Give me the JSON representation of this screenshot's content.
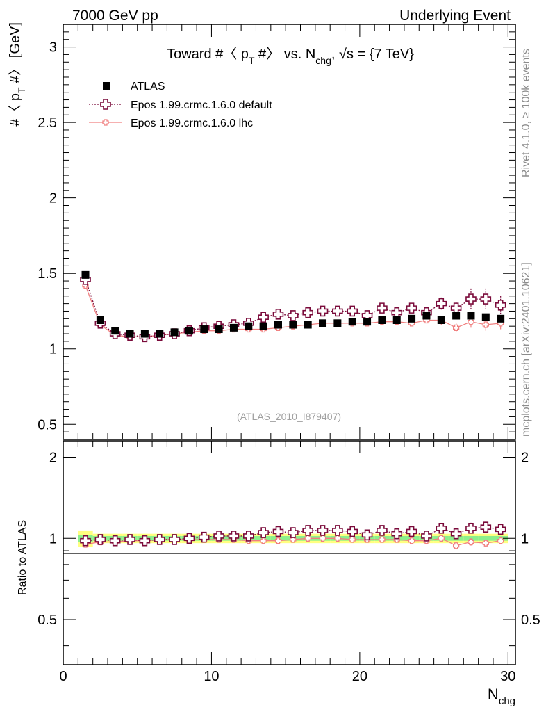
{
  "header": {
    "left": "7000 GeV pp",
    "right": "Underlying Event"
  },
  "side_labels": {
    "rivet": "Rivet 4.1.0, ≥ 100k events",
    "mcplots": "mcplots.cern.ch [arXiv:2401.10621]"
  },
  "colors": {
    "atlas": "#000000",
    "default": "#7a0a3a",
    "lhc": "#f08080",
    "band_inner": "#8cf08c",
    "band_outer": "#ffff80"
  },
  "chart_data": [
    {
      "type": "scatter",
      "title": {
        "pre": "Toward #〈 p",
        "sub": "T",
        "mid": " #〉 vs. N",
        "sub2": "chg",
        "post": ", √s = {7 TeV}"
      },
      "ylabel": {
        "pre": "#〈 p",
        "sub": "T",
        "post": " #〉 [GeV]"
      },
      "xlabel": {
        "main": "N",
        "sub": "chg"
      },
      "xlim": [
        0,
        30.5
      ],
      "ylim": [
        0.4,
        3.15
      ],
      "yticks": [
        "0.5",
        "1",
        "1.5",
        "2",
        "2.5",
        "3"
      ],
      "yticks_values": [
        0.5,
        1,
        1.5,
        2,
        2.5,
        3
      ],
      "watermark": "(ATLAS_2010_I879407)",
      "x": [
        1.5,
        2.5,
        3.5,
        4.5,
        5.5,
        6.5,
        7.5,
        8.5,
        9.5,
        10.5,
        11.5,
        12.5,
        13.5,
        14.5,
        15.5,
        16.5,
        17.5,
        18.5,
        19.5,
        20.5,
        21.5,
        22.5,
        23.5,
        24.5,
        25.5,
        26.5,
        27.5,
        28.5,
        29.5
      ],
      "series": [
        {
          "name": "ATLAS",
          "values": [
            1.49,
            1.19,
            1.12,
            1.1,
            1.1,
            1.1,
            1.11,
            1.12,
            1.13,
            1.13,
            1.14,
            1.15,
            1.15,
            1.16,
            1.16,
            1.16,
            1.17,
            1.17,
            1.18,
            1.18,
            1.19,
            1.19,
            1.2,
            1.22,
            1.19,
            1.22,
            1.22,
            1.21,
            1.2
          ]
        },
        {
          "name": "Epos 1.99.crmc.1.6.0 default",
          "values": [
            1.46,
            1.17,
            1.1,
            1.09,
            1.08,
            1.09,
            1.1,
            1.12,
            1.14,
            1.15,
            1.16,
            1.17,
            1.21,
            1.23,
            1.22,
            1.24,
            1.25,
            1.25,
            1.25,
            1.22,
            1.27,
            1.24,
            1.27,
            1.24,
            1.3,
            1.27,
            1.33,
            1.33,
            1.29
          ],
          "errors": [
            0.01,
            0.01,
            0.01,
            0.01,
            0.01,
            0.01,
            0.01,
            0.01,
            0.01,
            0.01,
            0.01,
            0.01,
            0.01,
            0.01,
            0.01,
            0.01,
            0.01,
            0.01,
            0.02,
            0.02,
            0.02,
            0.02,
            0.02,
            0.03,
            0.04,
            0.04,
            0.07,
            0.07,
            0.06
          ]
        },
        {
          "name": "Epos 1.99.crmc.1.6.0 lhc",
          "values": [
            1.42,
            1.16,
            1.09,
            1.08,
            1.08,
            1.09,
            1.1,
            1.11,
            1.12,
            1.12,
            1.13,
            1.13,
            1.13,
            1.14,
            1.15,
            1.16,
            1.17,
            1.17,
            1.17,
            1.17,
            1.18,
            1.18,
            1.17,
            1.19,
            1.19,
            1.14,
            1.18,
            1.16,
            1.17
          ],
          "errors": [
            0.01,
            0.01,
            0.01,
            0.01,
            0.01,
            0.01,
            0.01,
            0.01,
            0.01,
            0.01,
            0.01,
            0.01,
            0.01,
            0.01,
            0.01,
            0.01,
            0.01,
            0.01,
            0.01,
            0.01,
            0.02,
            0.02,
            0.02,
            0.02,
            0.03,
            0.03,
            0.04,
            0.04,
            0.04
          ]
        }
      ]
    },
    {
      "type": "scatter",
      "ylabel": "Ratio to ATLAS",
      "xlim": [
        0,
        30.5
      ],
      "ylim": [
        0.34,
        2.3
      ],
      "yticks": [
        "0.5",
        "1",
        "2"
      ],
      "yticks_values": [
        0.5,
        1,
        2
      ],
      "xticks": [
        "0",
        "10",
        "20",
        "30"
      ],
      "xticks_values": [
        0,
        10,
        20,
        30
      ],
      "x": [
        1.5,
        2.5,
        3.5,
        4.5,
        5.5,
        6.5,
        7.5,
        8.5,
        9.5,
        10.5,
        11.5,
        12.5,
        13.5,
        14.5,
        15.5,
        16.5,
        17.5,
        18.5,
        19.5,
        20.5,
        21.5,
        22.5,
        23.5,
        24.5,
        25.5,
        26.5,
        27.5,
        28.5,
        29.5
      ],
      "band_inner": [
        0.03,
        0.02,
        0.02,
        0.02,
        0.02,
        0.02,
        0.02,
        0.02,
        0.02,
        0.02,
        0.02,
        0.02,
        0.02,
        0.02,
        0.02,
        0.02,
        0.02,
        0.02,
        0.02,
        0.02,
        0.02,
        0.02,
        0.02,
        0.02,
        0.02,
        0.02,
        0.02,
        0.02,
        0.02
      ],
      "band_outer": [
        0.07,
        0.04,
        0.04,
        0.04,
        0.04,
        0.04,
        0.04,
        0.04,
        0.04,
        0.04,
        0.04,
        0.04,
        0.04,
        0.04,
        0.04,
        0.04,
        0.04,
        0.04,
        0.04,
        0.04,
        0.04,
        0.04,
        0.04,
        0.04,
        0.04,
        0.04,
        0.04,
        0.04,
        0.04
      ],
      "series": [
        {
          "name": "Epos 1.99.crmc.1.6.0 default",
          "values": [
            0.98,
            0.99,
            0.98,
            0.99,
            0.98,
            0.99,
            0.99,
            1.0,
            1.01,
            1.02,
            1.02,
            1.02,
            1.05,
            1.06,
            1.05,
            1.07,
            1.07,
            1.07,
            1.06,
            1.03,
            1.07,
            1.04,
            1.06,
            1.02,
            1.09,
            1.04,
            1.09,
            1.1,
            1.08
          ],
          "errors": [
            0.01,
            0.01,
            0.01,
            0.01,
            0.01,
            0.01,
            0.01,
            0.01,
            0.01,
            0.01,
            0.01,
            0.01,
            0.01,
            0.01,
            0.01,
            0.01,
            0.01,
            0.01,
            0.02,
            0.02,
            0.02,
            0.02,
            0.02,
            0.03,
            0.03,
            0.03,
            0.05,
            0.05,
            0.05
          ]
        },
        {
          "name": "Epos 1.99.crmc.1.6.0 lhc",
          "values": [
            0.95,
            0.97,
            0.97,
            0.98,
            0.98,
            0.99,
            0.99,
            0.99,
            0.99,
            0.99,
            0.99,
            0.98,
            0.98,
            0.98,
            0.99,
            1.0,
            1.0,
            1.0,
            0.99,
            0.99,
            0.99,
            0.99,
            0.98,
            0.98,
            1.0,
            0.94,
            0.97,
            0.96,
            0.98
          ],
          "errors": [
            0.01,
            0.01,
            0.01,
            0.01,
            0.01,
            0.01,
            0.01,
            0.01,
            0.01,
            0.01,
            0.01,
            0.01,
            0.01,
            0.01,
            0.01,
            0.01,
            0.01,
            0.01,
            0.01,
            0.01,
            0.02,
            0.02,
            0.02,
            0.02,
            0.03,
            0.03,
            0.03,
            0.03,
            0.03
          ]
        }
      ]
    }
  ]
}
